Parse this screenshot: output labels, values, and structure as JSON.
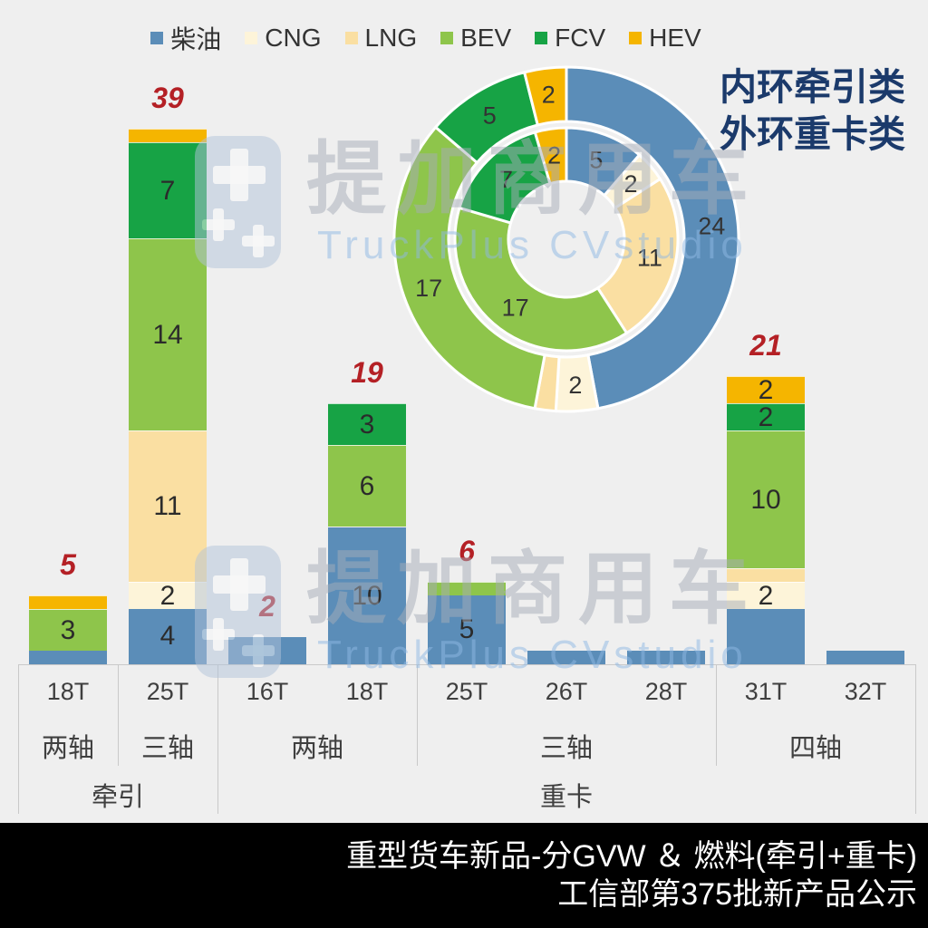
{
  "page": {
    "background": "#efefef"
  },
  "legend": {
    "items": [
      {
        "label": "柴油",
        "color": "#5b8db8"
      },
      {
        "label": "CNG",
        "color": "#fdf4d9"
      },
      {
        "label": "LNG",
        "color": "#fadfa2"
      },
      {
        "label": "BEV",
        "color": "#8ec54b"
      },
      {
        "label": "FCV",
        "color": "#17a345"
      },
      {
        "label": "HEV",
        "color": "#f5b500"
      }
    ]
  },
  "watermark": {
    "title": "提加商用车",
    "subtitle": "TruckPlus CVstudio"
  },
  "footer": {
    "line1": "重型货车新品-分GVW ＆ 燃料(牵引+重卡)",
    "line2": "工信部第375批新产品公示",
    "background": "#000000",
    "text_color": "#ffffff"
  },
  "chart_data": [
    {
      "type": "bar",
      "stacked": true,
      "title": "重型货车新品-分GVW ＆ 燃料(牵引+重卡)",
      "fuel_series": [
        "柴油",
        "CNG",
        "LNG",
        "BEV",
        "FCV",
        "HEV"
      ],
      "colors": {
        "柴油": "#5b8db8",
        "CNG": "#fdf4d9",
        "LNG": "#fadfa2",
        "BEV": "#8ec54b",
        "FCV": "#17a345",
        "HEV": "#f5b500"
      },
      "total_label_color": "#b42025",
      "grid": false,
      "ylim": [
        0,
        39
      ],
      "categories": [
        {
          "tonnage": "18T",
          "axle": "两轴",
          "class": "牵引",
          "total": 5,
          "total_label": "5",
          "segments": [
            {
              "fuel": "柴油",
              "value": 1,
              "label": ""
            },
            {
              "fuel": "BEV",
              "value": 3,
              "label": "3"
            },
            {
              "fuel": "HEV",
              "value": 1,
              "label": ""
            }
          ]
        },
        {
          "tonnage": "25T",
          "axle": "三轴",
          "class": "牵引",
          "total": 39,
          "total_label": "39",
          "segments": [
            {
              "fuel": "柴油",
              "value": 4,
              "label": "4"
            },
            {
              "fuel": "CNG",
              "value": 2,
              "label": "2"
            },
            {
              "fuel": "LNG",
              "value": 11,
              "label": "11"
            },
            {
              "fuel": "BEV",
              "value": 14,
              "label": "14"
            },
            {
              "fuel": "FCV",
              "value": 7,
              "label": "7"
            },
            {
              "fuel": "HEV",
              "value": 1,
              "label": ""
            }
          ]
        },
        {
          "tonnage": "16T",
          "axle": "两轴",
          "class": "重卡",
          "total": 2,
          "total_label": "2",
          "segments": [
            {
              "fuel": "柴油",
              "value": 2,
              "label": ""
            }
          ]
        },
        {
          "tonnage": "18T",
          "axle": "两轴",
          "class": "重卡",
          "total": 19,
          "total_label": "19",
          "segments": [
            {
              "fuel": "柴油",
              "value": 10,
              "label": "10"
            },
            {
              "fuel": "BEV",
              "value": 6,
              "label": "6"
            },
            {
              "fuel": "FCV",
              "value": 3,
              "label": "3"
            }
          ]
        },
        {
          "tonnage": "25T",
          "axle": "三轴",
          "class": "重卡",
          "total": 6,
          "total_label": "6",
          "segments": [
            {
              "fuel": "柴油",
              "value": 5,
              "label": "5"
            },
            {
              "fuel": "BEV",
              "value": 1,
              "label": ""
            }
          ]
        },
        {
          "tonnage": "26T",
          "axle": "三轴",
          "class": "重卡",
          "total": 1,
          "total_label": "",
          "segments": [
            {
              "fuel": "柴油",
              "value": 1,
              "label": ""
            }
          ]
        },
        {
          "tonnage": "28T",
          "axle": "三轴",
          "class": "重卡",
          "total": 1,
          "total_label": "",
          "segments": [
            {
              "fuel": "柴油",
              "value": 1,
              "label": ""
            }
          ]
        },
        {
          "tonnage": "31T",
          "axle": "四轴",
          "class": "重卡",
          "total": 21,
          "total_label": "21",
          "segments": [
            {
              "fuel": "柴油",
              "value": 4,
              "label": ""
            },
            {
              "fuel": "CNG",
              "value": 2,
              "label": "2"
            },
            {
              "fuel": "LNG",
              "value": 1,
              "label": ""
            },
            {
              "fuel": "BEV",
              "value": 10,
              "label": "10"
            },
            {
              "fuel": "FCV",
              "value": 2,
              "label": "2"
            },
            {
              "fuel": "HEV",
              "value": 2,
              "label": "2"
            }
          ]
        },
        {
          "tonnage": "32T",
          "axle": "四轴",
          "class": "重卡",
          "total": 1,
          "total_label": "",
          "segments": [
            {
              "fuel": "柴油",
              "value": 1,
              "label": ""
            }
          ]
        }
      ],
      "axle_groups": [
        {
          "label": "两轴",
          "from": 0,
          "to": 0
        },
        {
          "label": "三轴",
          "from": 1,
          "to": 1
        },
        {
          "label": "两轴",
          "from": 2,
          "to": 3
        },
        {
          "label": "三轴",
          "from": 4,
          "to": 6
        },
        {
          "label": "四轴",
          "from": 7,
          "to": 8
        }
      ],
      "class_groups": [
        {
          "label": "牵引",
          "from": 0,
          "to": 1
        },
        {
          "label": "重卡",
          "from": 2,
          "to": 8
        }
      ]
    },
    {
      "type": "pie",
      "subtype": "double-donut",
      "note": [
        "内环牵引类",
        "外环重卡类"
      ],
      "note_color": "#1b3a6b",
      "rings": [
        {
          "name": "牵引类(内环)",
          "total": 44,
          "slices": [
            {
              "fuel": "柴油",
              "value": 5,
              "label": "5"
            },
            {
              "fuel": "CNG",
              "value": 2,
              "label": "2"
            },
            {
              "fuel": "LNG",
              "value": 11,
              "label": "11"
            },
            {
              "fuel": "BEV",
              "value": 17,
              "label": "17"
            },
            {
              "fuel": "FCV",
              "value": 7,
              "label": "7"
            },
            {
              "fuel": "HEV",
              "value": 2,
              "label": "2"
            }
          ]
        },
        {
          "name": "重卡类(外环)",
          "total": 51,
          "slices": [
            {
              "fuel": "柴油",
              "value": 24,
              "label": "24"
            },
            {
              "fuel": "CNG",
              "value": 2,
              "label": "2"
            },
            {
              "fuel": "LNG",
              "value": 1,
              "label": ""
            },
            {
              "fuel": "BEV",
              "value": 17,
              "label": "17"
            },
            {
              "fuel": "FCV",
              "value": 5,
              "label": "5"
            },
            {
              "fuel": "HEV",
              "value": 2,
              "label": "2"
            }
          ]
        }
      ]
    }
  ]
}
